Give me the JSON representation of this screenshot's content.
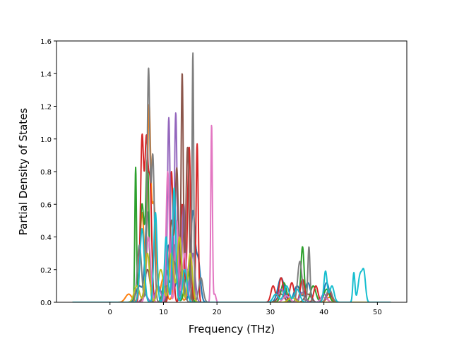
{
  "chart_data": {
    "type": "line",
    "title": "",
    "xlabel": "Frequency (THz)",
    "ylabel": "Partial Density of States",
    "xlim": [
      -10,
      55.5
    ],
    "ylim": [
      0,
      1.6
    ],
    "xticks": [
      0,
      10,
      20,
      30,
      40,
      50
    ],
    "yticks": [
      0.0,
      0.2,
      0.4,
      0.6,
      0.8,
      1.0,
      1.2,
      1.4,
      1.6
    ],
    "xtick_labels": [
      "0",
      "10",
      "20",
      "30",
      "40",
      "50"
    ],
    "ytick_labels": [
      "0.0",
      "0.2",
      "0.4",
      "0.6",
      "0.8",
      "1.0",
      "1.2",
      "1.4",
      "1.6"
    ],
    "grid": false,
    "legend": "none",
    "x_range": [
      -7,
      52.5
    ],
    "series": [
      {
        "color": "#1f77b4",
        "peaks": [
          [
            5.5,
            0.1,
            0.6
          ],
          [
            7.0,
            0.55,
            0.4
          ],
          [
            9.0,
            0.1,
            0.5
          ],
          [
            11.0,
            0.35,
            0.5
          ],
          [
            13.0,
            0.3,
            0.5
          ],
          [
            15.5,
            0.55,
            0.4
          ],
          [
            16.5,
            0.25,
            0.4
          ],
          [
            32.0,
            0.15,
            0.6
          ],
          [
            35.0,
            0.1,
            0.6
          ],
          [
            37.0,
            0.12,
            0.5
          ],
          [
            40.5,
            0.12,
            0.5
          ]
        ]
      },
      {
        "color": "#ff7f0e",
        "peaks": [
          [
            3.5,
            0.05,
            0.6
          ],
          [
            6.0,
            0.55,
            0.4
          ],
          [
            7.3,
            1.16,
            0.3
          ],
          [
            8.2,
            0.6,
            0.4
          ],
          [
            10.0,
            0.15,
            0.5
          ],
          [
            12.5,
            0.25,
            0.5
          ],
          [
            15.0,
            0.1,
            0.5
          ],
          [
            36.0,
            0.05,
            0.6
          ],
          [
            41.0,
            0.03,
            0.6
          ]
        ]
      },
      {
        "color": "#2ca02c",
        "peaks": [
          [
            4.8,
            0.82,
            0.15
          ],
          [
            6.0,
            0.6,
            0.4
          ],
          [
            7.0,
            0.85,
            0.3
          ],
          [
            10.5,
            0.2,
            0.5
          ],
          [
            12.0,
            0.35,
            0.4
          ],
          [
            14.5,
            0.2,
            0.5
          ],
          [
            32.5,
            0.12,
            0.5
          ],
          [
            36.0,
            0.34,
            0.3
          ],
          [
            38.0,
            0.1,
            0.5
          ],
          [
            40.5,
            0.08,
            0.5
          ]
        ]
      },
      {
        "color": "#d62728",
        "peaks": [
          [
            6.0,
            1.0,
            0.3
          ],
          [
            6.8,
            0.95,
            0.3
          ],
          [
            7.5,
            0.7,
            0.3
          ],
          [
            11.5,
            0.8,
            0.3
          ],
          [
            13.5,
            0.6,
            0.3
          ],
          [
            14.8,
            0.95,
            0.3
          ],
          [
            16.3,
            0.97,
            0.2
          ],
          [
            30.5,
            0.1,
            0.4
          ],
          [
            32.0,
            0.15,
            0.4
          ],
          [
            34.0,
            0.12,
            0.4
          ],
          [
            36.0,
            0.14,
            0.4
          ],
          [
            38.5,
            0.1,
            0.4
          ],
          [
            41.0,
            0.06,
            0.5
          ]
        ]
      },
      {
        "color": "#9467bd",
        "peaks": [
          [
            6.5,
            0.05,
            0.5
          ],
          [
            9.0,
            0.1,
            0.5
          ],
          [
            11.0,
            1.13,
            0.25
          ],
          [
            12.3,
            1.16,
            0.25
          ],
          [
            13.8,
            0.6,
            0.3
          ],
          [
            15.5,
            0.3,
            0.4
          ],
          [
            32.0,
            0.08,
            0.5
          ],
          [
            36.0,
            0.06,
            0.5
          ],
          [
            40.0,
            0.05,
            0.5
          ]
        ]
      },
      {
        "color": "#8c564b",
        "peaks": [
          [
            7.0,
            0.2,
            0.5
          ],
          [
            11.5,
            0.5,
            0.4
          ],
          [
            13.5,
            1.4,
            0.2
          ],
          [
            14.5,
            0.95,
            0.3
          ],
          [
            12.5,
            0.8,
            0.3
          ],
          [
            32.0,
            0.05,
            0.6
          ],
          [
            37.0,
            0.05,
            0.6
          ]
        ]
      },
      {
        "color": "#e377c2",
        "peaks": [
          [
            7.2,
            0.4,
            0.4
          ],
          [
            10.8,
            0.8,
            0.3
          ],
          [
            12.5,
            0.5,
            0.3
          ],
          [
            14.0,
            0.3,
            0.4
          ],
          [
            19.0,
            1.09,
            0.15
          ],
          [
            19.6,
            0.05,
            0.2
          ],
          [
            33.0,
            0.04,
            0.6
          ],
          [
            40.0,
            0.03,
            0.6
          ]
        ]
      },
      {
        "color": "#7f7f7f",
        "peaks": [
          [
            5.5,
            0.35,
            0.4
          ],
          [
            7.2,
            1.41,
            0.25
          ],
          [
            8.0,
            0.9,
            0.3
          ],
          [
            10.5,
            0.1,
            0.5
          ],
          [
            12.0,
            0.25,
            0.4
          ],
          [
            13.5,
            0.2,
            0.4
          ],
          [
            15.5,
            1.53,
            0.15
          ],
          [
            17.0,
            0.15,
            0.4
          ],
          [
            35.5,
            0.25,
            0.4
          ],
          [
            37.2,
            0.34,
            0.2
          ],
          [
            41.0,
            0.08,
            0.5
          ]
        ]
      },
      {
        "color": "#bcbd22",
        "peaks": [
          [
            5.0,
            0.1,
            0.5
          ],
          [
            7.0,
            0.3,
            0.4
          ],
          [
            9.5,
            0.2,
            0.5
          ],
          [
            11.5,
            0.3,
            0.4
          ],
          [
            13.0,
            0.4,
            0.4
          ],
          [
            15.0,
            0.3,
            0.4
          ],
          [
            34.0,
            0.03,
            0.6
          ]
        ]
      },
      {
        "color": "#17becf",
        "peaks": [
          [
            6.0,
            0.45,
            0.4
          ],
          [
            8.5,
            0.55,
            0.3
          ],
          [
            10.5,
            0.4,
            0.3
          ],
          [
            12.0,
            0.7,
            0.3
          ],
          [
            14.0,
            0.2,
            0.4
          ],
          [
            31.0,
            0.05,
            0.5
          ],
          [
            33.0,
            0.1,
            0.5
          ],
          [
            35.0,
            0.08,
            0.5
          ],
          [
            40.3,
            0.19,
            0.3
          ],
          [
            41.5,
            0.1,
            0.4
          ],
          [
            45.6,
            0.18,
            0.2
          ],
          [
            46.8,
            0.17,
            0.4
          ],
          [
            47.5,
            0.16,
            0.3
          ]
        ]
      }
    ]
  }
}
